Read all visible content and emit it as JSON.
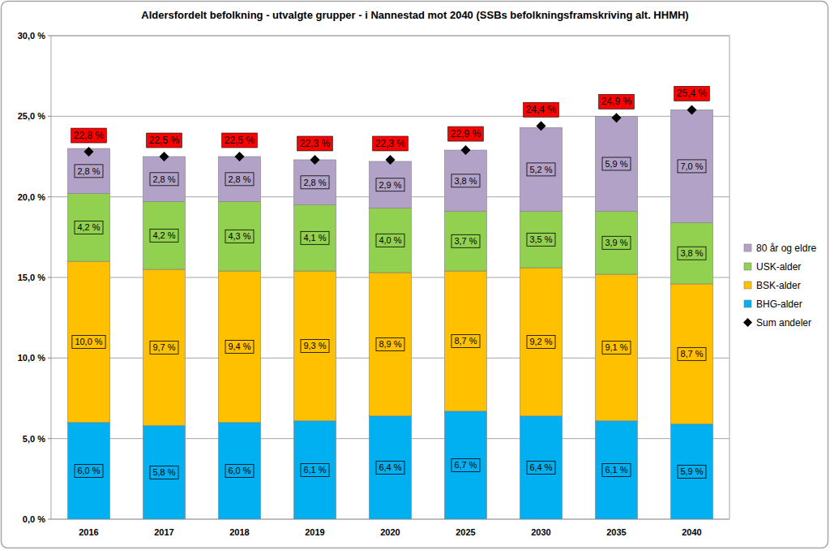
{
  "chart_data": {
    "type": "bar",
    "title": "Aldersfordelt befolkning - utvalgte grupper - i Nannestad mot 2040 (SSBs befolkningsframskriving alt. HHMH)",
    "categories": [
      "2016",
      "2017",
      "2018",
      "2019",
      "2020",
      "2025",
      "2030",
      "2035",
      "2040"
    ],
    "stacked": true,
    "data_labels": true,
    "grid": true,
    "legend": "right",
    "ylim": [
      0,
      30
    ],
    "yticks": [
      {
        "value": 0,
        "label": "0,0 %"
      },
      {
        "value": 5,
        "label": "5,0 %"
      },
      {
        "value": 10,
        "label": "10,0 %"
      },
      {
        "value": 15,
        "label": "15,0 %"
      },
      {
        "value": 20,
        "label": "20,0 %"
      },
      {
        "value": 25,
        "label": "25,0 %"
      },
      {
        "value": 30,
        "label": "30,0 %"
      }
    ],
    "series": [
      {
        "name": "BHG-alder",
        "color": "#00b0f0",
        "values": [
          6.0,
          5.8,
          6.0,
          6.1,
          6.4,
          6.7,
          6.4,
          6.1,
          5.9
        ],
        "value_labels": [
          "6,0 %",
          "5,8 %",
          "6,0 %",
          "6,1 %",
          "6,4 %",
          "6,7 %",
          "6,4 %",
          "6,1 %",
          "5,9 %"
        ]
      },
      {
        "name": "BSK-alder",
        "color": "#ffc000",
        "values": [
          10.0,
          9.7,
          9.4,
          9.3,
          8.9,
          8.7,
          9.2,
          9.1,
          8.7
        ],
        "value_labels": [
          "10,0 %",
          "9,7 %",
          "9,4 %",
          "9,3 %",
          "8,9 %",
          "8,7 %",
          "9,2 %",
          "9,1 %",
          "8,7 %"
        ]
      },
      {
        "name": "USK-alder",
        "color": "#92d050",
        "values": [
          4.2,
          4.2,
          4.3,
          4.1,
          4.0,
          3.7,
          3.5,
          3.9,
          3.8
        ],
        "value_labels": [
          "4,2 %",
          "4,2 %",
          "4,3 %",
          "4,1 %",
          "4,0 %",
          "3,7 %",
          "3,5 %",
          "3,9 %",
          "3,8 %"
        ]
      },
      {
        "name": "80 år og eldre",
        "color": "#b3a2c7",
        "values": [
          2.8,
          2.8,
          2.8,
          2.8,
          2.9,
          3.8,
          5.2,
          5.9,
          7.0
        ],
        "value_labels": [
          "2,8 %",
          "2,8 %",
          "2,8 %",
          "2,8 %",
          "2,9 %",
          "3,8 %",
          "5,2 %",
          "5,9 %",
          "7,0 %"
        ]
      },
      {
        "name": "Sum andeler",
        "color": "#000000",
        "type": "line",
        "marker": "diamond",
        "line_style": "none",
        "values": [
          22.8,
          22.5,
          22.5,
          22.3,
          22.3,
          22.9,
          24.4,
          24.9,
          25.4
        ],
        "value_labels": [
          "22,8 %",
          "22,5 %",
          "22,5 %",
          "22,3 %",
          "22,3 %",
          "22,9 %",
          "24,4 %",
          "24,9 %",
          "25,4 %"
        ]
      }
    ]
  }
}
